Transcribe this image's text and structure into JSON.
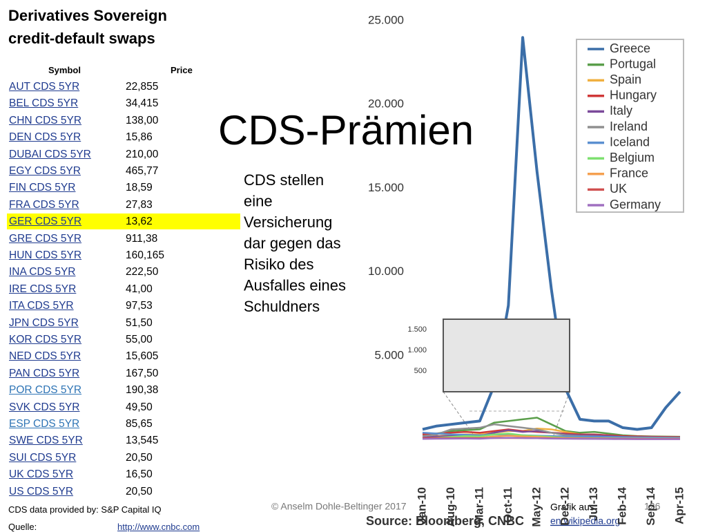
{
  "table": {
    "title": [
      "Derivatives Sovereign",
      "credit-default swaps"
    ],
    "headers": [
      "Symbol",
      "Price"
    ],
    "rows": [
      {
        "symbol": "AUT CDS 5YR",
        "price": "22,855"
      },
      {
        "symbol": "BEL CDS 5YR",
        "price": "34,415"
      },
      {
        "symbol": "CHN CDS 5YR",
        "price": "138,00"
      },
      {
        "symbol": "DEN CDS 5YR",
        "price": "15,86"
      },
      {
        "symbol": "DUBAI CDS 5YR",
        "price": "210,00"
      },
      {
        "symbol": "EGY CDS 5YR",
        "price": "465,77"
      },
      {
        "symbol": "FIN CDS 5YR",
        "price": "18,59"
      },
      {
        "symbol": "FRA CDS 5YR",
        "price": "27,83"
      },
      {
        "symbol": "GER CDS 5YR",
        "price": "13,62",
        "highlight": "#ffff00"
      },
      {
        "symbol": "GRE CDS 5YR",
        "price": "911,38"
      },
      {
        "symbol": "HUN CDS 5YR",
        "price": "160,165"
      },
      {
        "symbol": "INA CDS 5YR",
        "price": "222,50"
      },
      {
        "symbol": "IRE CDS 5YR",
        "price": "41,00"
      },
      {
        "symbol": "ITA CDS 5YR",
        "price": "97,53"
      },
      {
        "symbol": "JPN CDS 5YR",
        "price": "51,50"
      },
      {
        "symbol": "KOR CDS 5YR",
        "price": "55,00"
      },
      {
        "symbol": "NED CDS 5YR",
        "price": "15,605"
      },
      {
        "symbol": "PAN CDS 5YR",
        "price": "167,50"
      },
      {
        "symbol": "POR CDS 5YR",
        "price": "190,38",
        "color": "#2e74b5"
      },
      {
        "symbol": "SVK CDS 5YR",
        "price": "49,50"
      },
      {
        "symbol": "ESP CDS 5YR",
        "price": "85,65",
        "color": "#2e74b5"
      },
      {
        "symbol": "SWE CDS 5YR",
        "price": "13,545"
      },
      {
        "symbol": "SUI CDS 5YR",
        "price": "20,50"
      },
      {
        "symbol": "UK CDS 5YR",
        "price": "16,50"
      },
      {
        "symbol": "US CDS 5YR",
        "price": "20,50"
      }
    ],
    "provider": "CDS data provided by: S&P Capital IQ",
    "source_label": "Quelle:",
    "source_link": "http://www.cnbc.com"
  },
  "slide": {
    "title": "CDS-Prämien",
    "text": [
      "CDS stellen",
      "eine",
      "Versicherung",
      "dar gegen das",
      "Risiko des",
      "Ausfalles eines",
      "Schuldners"
    ],
    "copyright": "© Anselm Dohle-Beltinger 2017",
    "page": "126",
    "credit_label": "Grafik aus:",
    "credit_link": "en.wikipedia.org"
  },
  "chart_data": {
    "type": "line",
    "source": "Source: Bloomberg, CNBC",
    "categories": [
      "Jan-10",
      null,
      "Aug-10",
      null,
      "Mar-11",
      null,
      "Oct-11",
      null,
      "May-12",
      null,
      "Dec-12",
      null,
      "Jul-13",
      null,
      "Feb-14",
      null,
      "Sep-14",
      null,
      "Apr-15"
    ],
    "ylim": [
      0,
      25000
    ],
    "yticks": [
      {
        "value": 5000,
        "label": "5.000"
      },
      {
        "value": 10000,
        "label": "10.000"
      },
      {
        "value": 15000,
        "label": "15.000"
      },
      {
        "value": 20000,
        "label": "20.000"
      },
      {
        "value": 25000,
        "label": "25.000"
      }
    ],
    "inset_ticks": [
      {
        "value": 500,
        "label": "500"
      },
      {
        "value": 1000,
        "label": "1.000"
      },
      {
        "value": 1500,
        "label": "1.500"
      }
    ],
    "series": [
      {
        "name": "Greece",
        "color": "#3b6ea8",
        "values": [
          600,
          800,
          900,
          1000,
          1100,
          3200,
          8000,
          24000,
          16000,
          9000,
          3000,
          1200,
          1100,
          1100,
          700,
          600,
          700,
          1900,
          2850
        ]
      },
      {
        "name": "Portugal",
        "color": "#5a9e4a",
        "values": [
          300,
          350,
          500,
          550,
          600,
          1000,
          1100,
          1200,
          1300,
          900,
          500,
          400,
          450,
          350,
          250,
          200,
          180,
          170,
          160
        ]
      },
      {
        "name": "Spain",
        "color": "#f0b040",
        "values": [
          100,
          200,
          250,
          300,
          300,
          400,
          500,
          500,
          650,
          600,
          450,
          300,
          250,
          200,
          150,
          100,
          90,
          90,
          90
        ]
      },
      {
        "name": "Hungary",
        "color": "#d03838",
        "values": [
          300,
          350,
          400,
          450,
          400,
          500,
          600,
          500,
          450,
          400,
          350,
          300,
          300,
          250,
          200,
          180,
          160,
          150,
          140
        ]
      },
      {
        "name": "Italy",
        "color": "#7b4a9a",
        "values": [
          100,
          180,
          200,
          250,
          200,
          400,
          550,
          450,
          500,
          400,
          300,
          250,
          250,
          200,
          150,
          120,
          110,
          100,
          100
        ]
      },
      {
        "name": "Ireland",
        "color": "#909090",
        "values": [
          200,
          300,
          600,
          650,
          700,
          900,
          800,
          700,
          600,
          400,
          250,
          200,
          180,
          150,
          120,
          100,
          90,
          80,
          70
        ]
      },
      {
        "name": "Iceland",
        "color": "#5b8fd0",
        "values": [
          400,
          350,
          300,
          280,
          250,
          300,
          280,
          250,
          220,
          200,
          180,
          170,
          160,
          150,
          140,
          130,
          120,
          110,
          100
        ]
      },
      {
        "name": "Belgium",
        "color": "#7ee070",
        "values": [
          50,
          100,
          150,
          200,
          180,
          300,
          350,
          250,
          200,
          150,
          100,
          80,
          70,
          60,
          50,
          50,
          45,
          40,
          40
        ]
      },
      {
        "name": "France",
        "color": "#f5a050",
        "values": [
          50,
          80,
          90,
          100,
          90,
          180,
          220,
          180,
          150,
          100,
          80,
          70,
          60,
          55,
          50,
          45,
          40,
          40,
          40
        ]
      },
      {
        "name": "UK",
        "color": "#d05050",
        "values": [
          70,
          80,
          70,
          75,
          70,
          80,
          90,
          80,
          70,
          60,
          50,
          45,
          40,
          35,
          30,
          25,
          25,
          25,
          25
        ]
      },
      {
        "name": "Germany",
        "color": "#a070c0",
        "values": [
          30,
          40,
          45,
          50,
          40,
          80,
          100,
          80,
          70,
          50,
          40,
          35,
          30,
          25,
          20,
          18,
          15,
          15,
          15
        ]
      }
    ]
  }
}
